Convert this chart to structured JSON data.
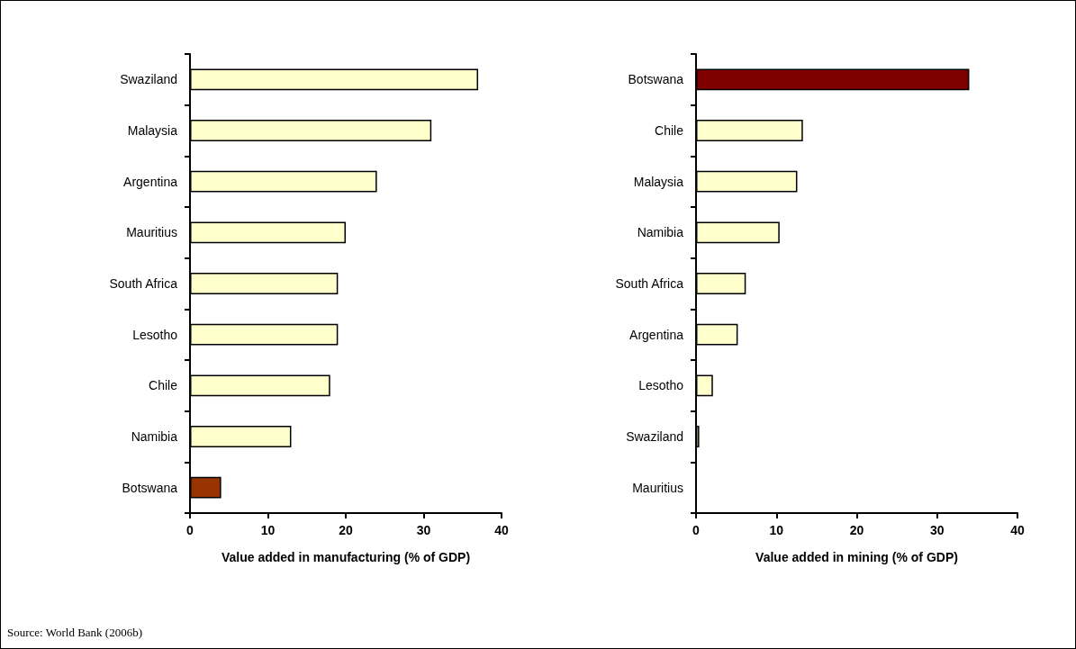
{
  "chart_data": [
    {
      "type": "bar",
      "orientation": "horizontal",
      "categories": [
        "Swaziland",
        "Malaysia",
        "Argentina",
        "Mauritius",
        "South Africa",
        "Lesotho",
        "Chile",
        "Namibia",
        "Botswana"
      ],
      "values": [
        37,
        31,
        24,
        20,
        19,
        19,
        18,
        13,
        4
      ],
      "colors": [
        "#ffffcc",
        "#ffffcc",
        "#ffffcc",
        "#ffffcc",
        "#ffffcc",
        "#ffffcc",
        "#ffffcc",
        "#ffffcc",
        "#993300"
      ],
      "xlabel": "Value added in manufacturing (% of GDP)",
      "xlim": [
        0,
        40
      ],
      "xticks": [
        0,
        10,
        20,
        30,
        40
      ],
      "grid": false,
      "annotations": [
        "Source: World Bank (2006b)"
      ]
    },
    {
      "type": "bar",
      "orientation": "horizontal",
      "categories": [
        "Botswana",
        "Chile",
        "Malaysia",
        "Namibia",
        "South Africa",
        "Argentina",
        "Lesotho",
        "Swaziland",
        "Mauritius"
      ],
      "values": [
        34,
        13.3,
        12.6,
        10.4,
        6.2,
        5.2,
        2.1,
        0.4,
        0
      ],
      "colors": [
        "#800000",
        "#ffffcc",
        "#ffffcc",
        "#ffffcc",
        "#ffffcc",
        "#ffffcc",
        "#ffffcc",
        "#ffffcc",
        "#ffffcc"
      ],
      "xlabel": "Value added in mining (% of GDP)",
      "xlim": [
        0,
        40
      ],
      "xticks": [
        0,
        10,
        20,
        30,
        40
      ],
      "grid": false
    }
  ]
}
